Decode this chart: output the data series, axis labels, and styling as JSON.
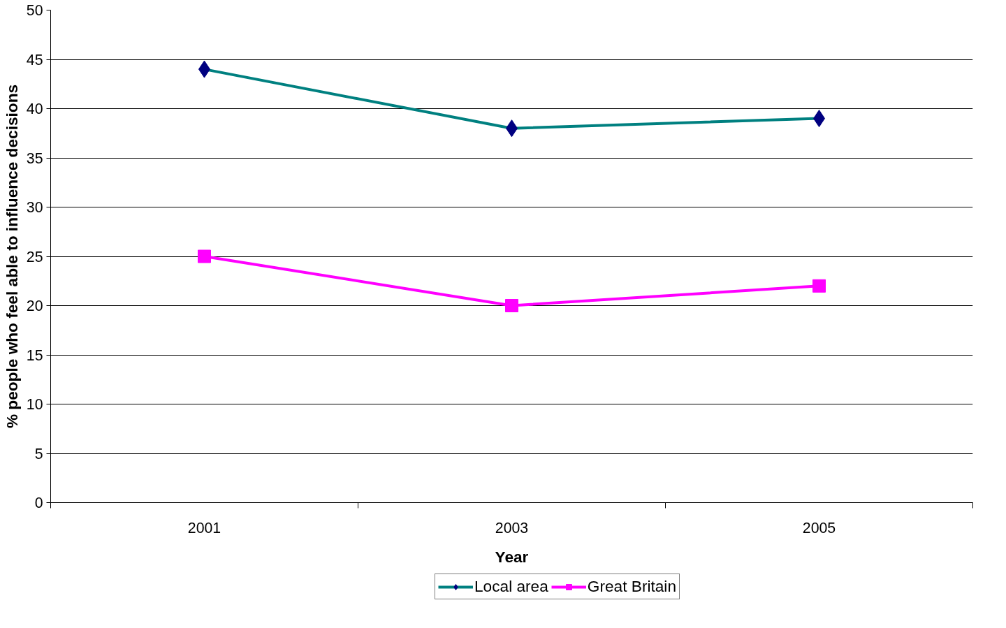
{
  "chart_data": {
    "type": "line",
    "xlabel": "Year",
    "ylabel": "% people who feel able to influence decisions",
    "categories": [
      "2001",
      "2003",
      "2005"
    ],
    "series": [
      {
        "name": "Local area",
        "color": "#008080",
        "values": [
          44,
          38,
          39
        ],
        "marker": "diamond"
      },
      {
        "name": "Great Britain",
        "color": "#ff00ff",
        "values": [
          25,
          20,
          22
        ],
        "marker": "square"
      }
    ],
    "ylim": [
      0,
      50
    ],
    "yticks": [
      0,
      5,
      10,
      15,
      20,
      25,
      30,
      35,
      40,
      45,
      50
    ],
    "grid": "y",
    "legend": "bottom",
    "line_style": "solid"
  }
}
